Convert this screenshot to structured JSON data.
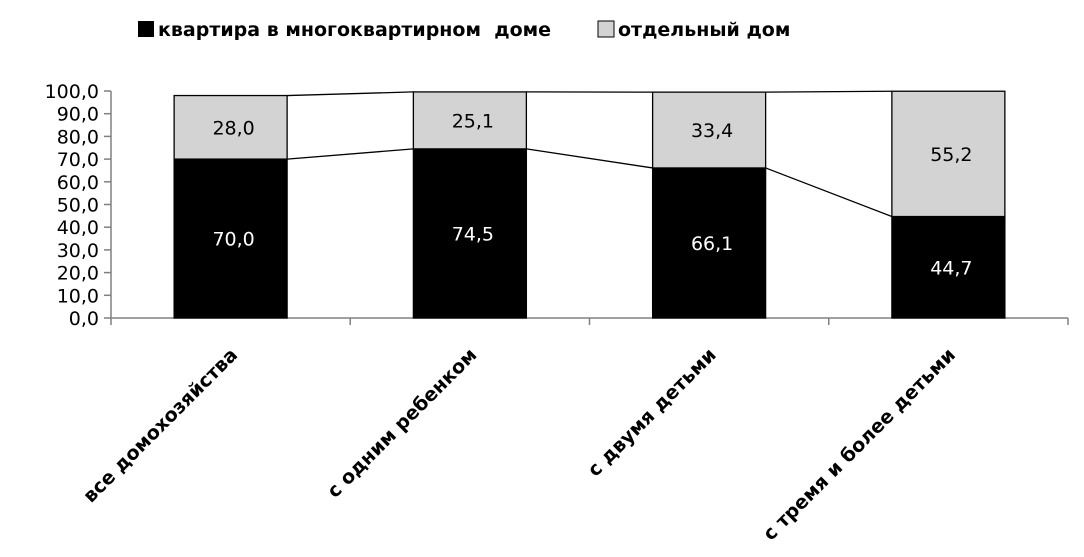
{
  "chart_data": {
    "type": "bar",
    "stacked": true,
    "categories": [
      "все домохозяйства",
      "с одним ребенком",
      "с двумя детьми",
      "с тремя и более детьми"
    ],
    "series": [
      {
        "name": "квартира в многоквартирном  доме",
        "values": [
          70.0,
          74.5,
          66.1,
          44.7
        ],
        "labels": [
          "70,0",
          "74,5",
          "66,1",
          "44,7"
        ],
        "color": "#000000",
        "label_color": "#ffffff"
      },
      {
        "name": "отдельный дом",
        "values": [
          28.0,
          25.1,
          33.4,
          55.2
        ],
        "labels": [
          "28,0",
          "25,1",
          "33,4",
          "55,2"
        ],
        "color": "#d3d3d3",
        "label_color": "#000000"
      }
    ],
    "series_lines": true,
    "ylim": [
      0,
      100
    ],
    "yticks": [
      "0,0",
      "10,0",
      "20,0",
      "30,0",
      "40,0",
      "50,0",
      "60,0",
      "70,0",
      "80,0",
      "90,0",
      "100,0"
    ],
    "grid": false,
    "legend_position": "top",
    "title": "",
    "xlabel": "",
    "ylabel": ""
  }
}
